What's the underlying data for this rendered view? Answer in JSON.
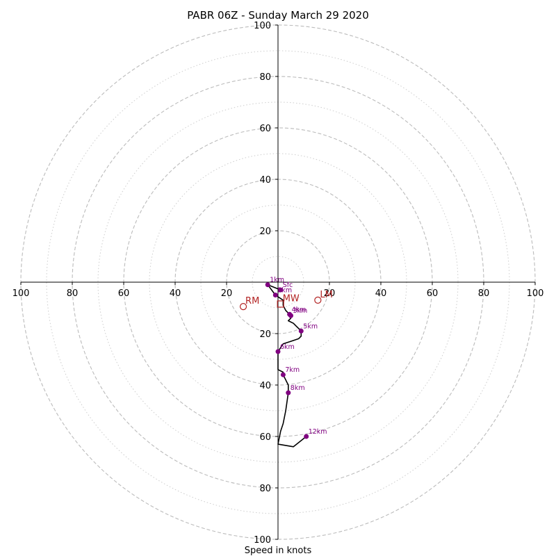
{
  "chart_data": {
    "type": "scatter",
    "title": "PABR 06Z - Sunday March 29 2020",
    "xlabel": "Speed in knots",
    "ylabel": "",
    "xlim": [
      -100,
      100
    ],
    "ylim": [
      -100,
      100
    ],
    "rings_major": [
      20,
      40,
      60,
      80,
      100
    ],
    "rings_minor": [
      10,
      30,
      50,
      70,
      90
    ],
    "x_tick_labels": [
      "100",
      "80",
      "60",
      "40",
      "20",
      "20",
      "40",
      "60",
      "80",
      "100"
    ],
    "x_tick_values": [
      -100,
      -80,
      -60,
      -40,
      -20,
      20,
      40,
      60,
      80,
      100
    ],
    "y_tick_labels": [
      "100",
      "80",
      "60",
      "40",
      "20",
      "20",
      "40",
      "60",
      "80",
      "100"
    ],
    "y_tick_values": [
      100,
      80,
      60,
      40,
      20,
      -20,
      -40,
      -60,
      -80,
      -100
    ],
    "colors": {
      "hodograph": "#000000",
      "height_marker": "#800080",
      "motion_marker": "#b22222",
      "ring": "#bbbbbb"
    },
    "hodograph": {
      "u": [
        1,
        -4,
        -1,
        2,
        2,
        3,
        4,
        5,
        5,
        4,
        6,
        7,
        8,
        9,
        9,
        8,
        5,
        2,
        0,
        0,
        0,
        2,
        2,
        4,
        4,
        3,
        2,
        1,
        0,
        0,
        0,
        6,
        11
      ],
      "v": [
        -3,
        -1,
        -5,
        -7,
        -9,
        -11,
        -12,
        -13,
        -14,
        -15,
        -16,
        -17,
        -18,
        -19,
        -21,
        -22,
        -23,
        -24,
        -27,
        -30,
        -34,
        -35,
        -36,
        -40,
        -43,
        -50,
        -55,
        -58,
        -63,
        -63,
        -63,
        -64,
        -60
      ]
    },
    "height_markers": [
      {
        "label": "Sfc",
        "u": 1,
        "v": -3
      },
      {
        "label": "1km",
        "u": -4,
        "v": -1
      },
      {
        "label": "2km",
        "u": -1,
        "v": -5
      },
      {
        "label": "3km",
        "u": 5,
        "v": -13
      },
      {
        "label": "4km",
        "u": 4.5,
        "v": -12.5
      },
      {
        "label": "5km",
        "u": 9,
        "v": -19
      },
      {
        "label": "6km",
        "u": 0,
        "v": -27
      },
      {
        "label": "7km",
        "u": 2,
        "v": -36
      },
      {
        "label": "8km",
        "u": 4,
        "v": -43
      },
      {
        "label": "12km",
        "u": 11,
        "v": -60
      }
    ],
    "storm_motion": [
      {
        "label": "RM",
        "u": -13.5,
        "v": -9.5,
        "marker": "circle"
      },
      {
        "label": "LM",
        "u": 15.5,
        "v": -7,
        "marker": "circle"
      },
      {
        "label": "MW",
        "u": 1,
        "v": -8.5,
        "marker": "square"
      }
    ]
  }
}
